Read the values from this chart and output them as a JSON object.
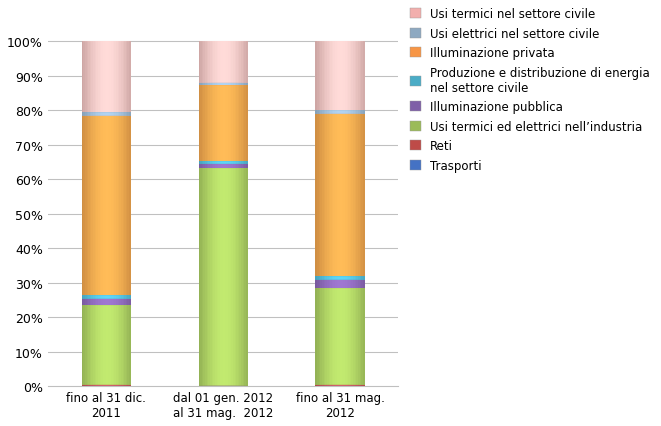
{
  "categories": [
    "fino al 31 dic.\n2011",
    "dal 01 gen. 2012\nal 31 mag.  2012",
    "fino al 31 mag.\n2012"
  ],
  "series": [
    {
      "label": "Trasporti",
      "color": "#4472C4",
      "values": [
        0.2,
        0.1,
        0.2
      ]
    },
    {
      "label": "Reti",
      "color": "#BE4B48",
      "values": [
        0.2,
        0.1,
        0.2
      ]
    },
    {
      "label": "Usi termici ed elettrici nell’industria",
      "color": "#9BBB59",
      "values": [
        23.0,
        63.0,
        28.0
      ]
    },
    {
      "label": "Illuminazione pubblica",
      "color": "#7F5FA7",
      "values": [
        2.0,
        1.2,
        2.5
      ]
    },
    {
      "label": "Produzione e distribuzione di energia\nnel settore civile",
      "color": "#4BACC6",
      "values": [
        1.0,
        0.8,
        1.0
      ]
    },
    {
      "label": "Illuminazione privata",
      "color": "#F79646",
      "values": [
        52.0,
        22.0,
        47.0
      ]
    },
    {
      "label": "Usi elettrici nel settore civile",
      "color": "#8EA9C1",
      "values": [
        1.0,
        0.8,
        1.0
      ]
    },
    {
      "label": "Usi termici nel settore civile",
      "color": "#F2AFAD",
      "values": [
        20.6,
        12.0,
        20.1
      ]
    }
  ],
  "ylim": [
    0,
    110
  ],
  "yticks": [
    0,
    10,
    20,
    30,
    40,
    50,
    60,
    70,
    80,
    90,
    100
  ],
  "bar_width": 0.42,
  "cylinder_aspect": 0.06,
  "background_color": "#FFFFFF",
  "grid_color": "#BFBFBF",
  "legend_fontsize": 8.5,
  "tick_fontsize": 9,
  "xlabel_fontsize": 8.5
}
